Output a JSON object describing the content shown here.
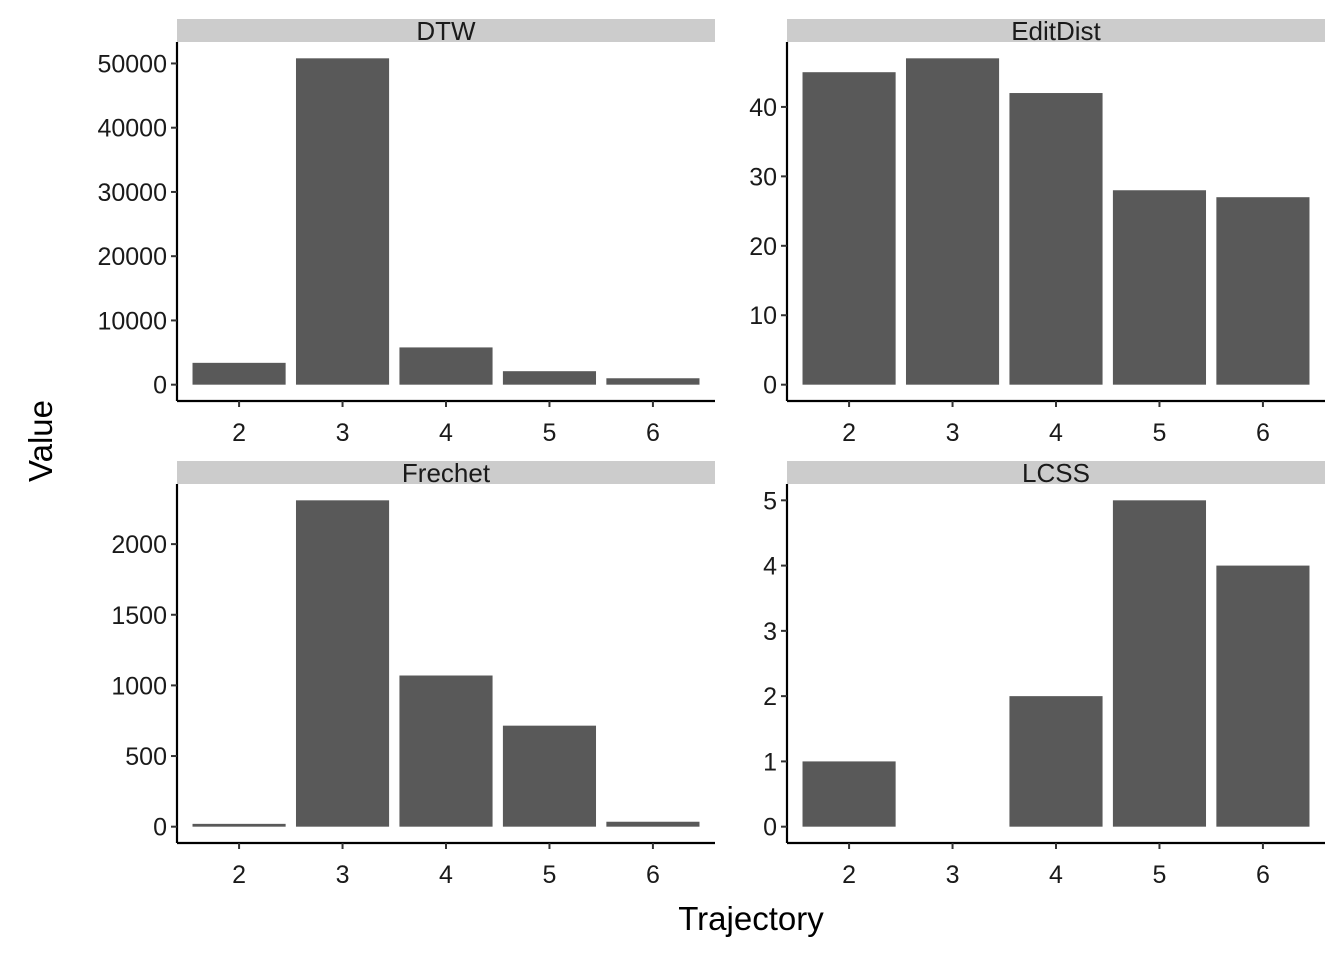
{
  "chart_data": {
    "type": "bar",
    "layout": "facet_wrap_2x2_free_y",
    "xlabel": "Trajectory",
    "ylabel": "Value",
    "categories": [
      "2",
      "3",
      "4",
      "5",
      "6"
    ],
    "bar_color": "#595959",
    "strip_color": "#cccccc",
    "grid": false,
    "panels": [
      {
        "title": "DTW",
        "values": [
          3400,
          50800,
          5800,
          2100,
          1000
        ],
        "yticks": [
          0,
          10000,
          20000,
          30000,
          40000,
          50000
        ],
        "ytick_labels": [
          "0",
          "10000",
          "20000",
          "30000",
          "40000",
          "50000"
        ],
        "ylim": [
          -2540,
          53340
        ]
      },
      {
        "title": "EditDist",
        "values": [
          45,
          47,
          42,
          28,
          27
        ],
        "yticks": [
          0,
          10,
          20,
          30,
          40
        ],
        "ytick_labels": [
          "0",
          "10",
          "20",
          "30",
          "40"
        ],
        "ylim": [
          -2.35,
          49.35
        ]
      },
      {
        "title": "Frechet",
        "values": [
          20,
          2310,
          1070,
          715,
          35
        ],
        "yticks": [
          0,
          500,
          1000,
          1500,
          2000
        ],
        "ytick_labels": [
          "0",
          "500",
          "1000",
          "1500",
          "2000"
        ],
        "ylim": [
          -115.5,
          2425.5
        ]
      },
      {
        "title": "LCSS",
        "values": [
          1,
          0,
          2,
          5,
          4
        ],
        "yticks": [
          0,
          1,
          2,
          3,
          4,
          5
        ],
        "ytick_labels": [
          "0",
          "1",
          "2",
          "3",
          "4",
          "5"
        ],
        "ylim": [
          -0.25,
          5.25
        ]
      }
    ]
  }
}
